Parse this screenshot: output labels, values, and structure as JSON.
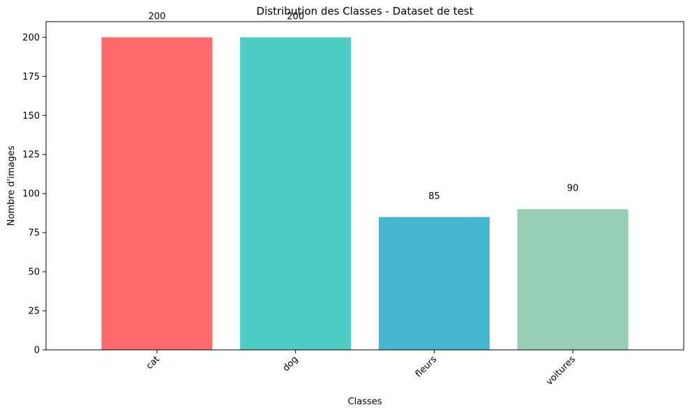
{
  "chart_data": {
    "type": "bar",
    "title": "Distribution des Classes - Dataset de test",
    "xlabel": "Classes",
    "ylabel": "Nombre d'images",
    "categories": [
      "cat",
      "dog",
      "fleurs",
      "voitures"
    ],
    "values": [
      200,
      200,
      85,
      90
    ],
    "data_labels": [
      "200",
      "200",
      "85",
      "90"
    ],
    "colors": [
      "#FF6B6B",
      "#4ECDC4",
      "#45B7D1",
      "#96CEB4"
    ],
    "ylim": [
      0,
      210
    ],
    "yticks": [
      0,
      25,
      50,
      75,
      100,
      125,
      150,
      175,
      200
    ],
    "x_tick_rotation_deg": 45,
    "grid": false,
    "legend": "none"
  }
}
